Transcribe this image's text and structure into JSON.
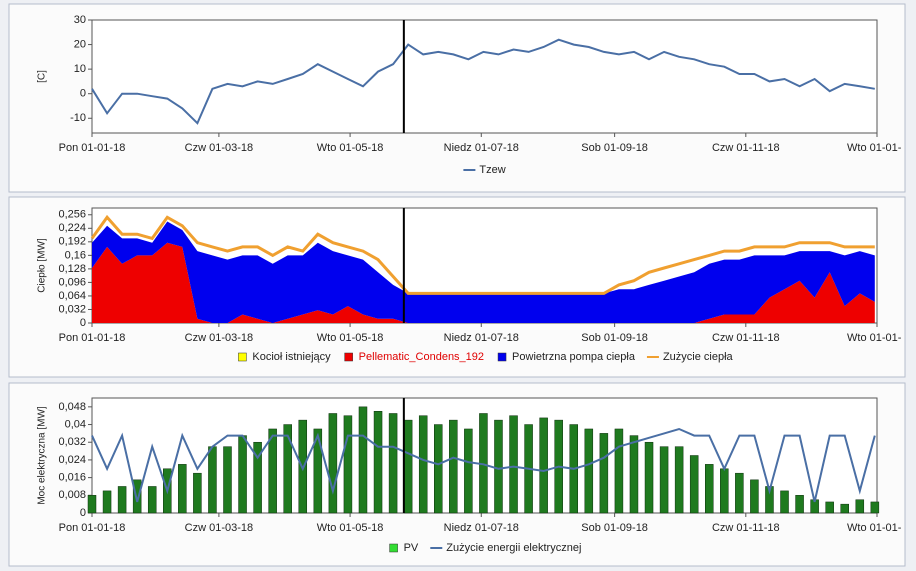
{
  "chart_data": [
    {
      "type": "line",
      "ylabel": "[C]",
      "x": [
        "2018-01-01",
        "2018-01-08",
        "2018-01-15",
        "2018-01-22",
        "2018-01-29",
        "2018-02-05",
        "2018-02-12",
        "2018-02-19",
        "2018-02-26",
        "2018-03-05",
        "2018-03-12",
        "2018-03-19",
        "2018-03-26",
        "2018-04-02",
        "2018-04-09",
        "2018-04-16",
        "2018-04-23",
        "2018-04-30",
        "2018-05-07",
        "2018-05-14",
        "2018-05-21",
        "2018-05-28",
        "2018-06-04",
        "2018-06-11",
        "2018-06-18",
        "2018-06-25",
        "2018-07-02",
        "2018-07-09",
        "2018-07-16",
        "2018-07-23",
        "2018-07-30",
        "2018-08-06",
        "2018-08-13",
        "2018-08-20",
        "2018-08-27",
        "2018-09-03",
        "2018-09-10",
        "2018-09-17",
        "2018-09-24",
        "2018-10-01",
        "2018-10-08",
        "2018-10-15",
        "2018-10-22",
        "2018-10-29",
        "2018-11-05",
        "2018-11-12",
        "2018-11-19",
        "2018-11-26",
        "2018-12-03",
        "2018-12-10",
        "2018-12-17",
        "2018-12-24",
        "2018-12-31"
      ],
      "xlim": [
        "2018-01-01",
        "2019-01-01"
      ],
      "xticks": [
        {
          "value": "2018-01-01",
          "label": "Pon 01-01-18"
        },
        {
          "value": "2018-03-01",
          "label": "Czw 01-03-18"
        },
        {
          "value": "2018-05-01",
          "label": "Wto 01-05-18"
        },
        {
          "value": "2018-07-01",
          "label": "Niedz 01-07-18"
        },
        {
          "value": "2018-09-01",
          "label": "Sob 01-09-18"
        },
        {
          "value": "2018-11-01",
          "label": "Czw 01-11-18"
        },
        {
          "value": "2019-01-01",
          "label": "Wto 01-01-"
        }
      ],
      "ylim": [
        -16,
        30
      ],
      "yticks": [
        -10,
        0,
        10,
        20,
        30
      ],
      "cursor": "2018-05-26",
      "series": [
        {
          "name": "Tzew",
          "color": "#4a6fa5",
          "kind": "line",
          "values": [
            2,
            -8,
            0,
            0,
            -1,
            -2,
            -6,
            -12,
            2,
            4,
            3,
            5,
            4,
            6,
            8,
            12,
            9,
            6,
            3,
            9,
            12,
            20,
            16,
            17,
            16,
            14,
            17,
            16,
            18,
            17,
            19,
            22,
            20,
            19,
            17,
            16,
            17,
            14,
            17,
            15,
            14,
            12,
            11,
            8,
            8,
            5,
            6,
            3,
            6,
            1,
            4,
            3,
            2
          ]
        }
      ]
    },
    {
      "type": "area",
      "ylabel": "Ciepło [MW]",
      "x": [
        "2018-01-01",
        "2018-01-08",
        "2018-01-15",
        "2018-01-22",
        "2018-01-29",
        "2018-02-05",
        "2018-02-12",
        "2018-02-19",
        "2018-02-26",
        "2018-03-05",
        "2018-03-12",
        "2018-03-19",
        "2018-03-26",
        "2018-04-02",
        "2018-04-09",
        "2018-04-16",
        "2018-04-23",
        "2018-04-30",
        "2018-05-07",
        "2018-05-14",
        "2018-05-21",
        "2018-05-28",
        "2018-06-04",
        "2018-06-11",
        "2018-06-18",
        "2018-06-25",
        "2018-07-02",
        "2018-07-09",
        "2018-07-16",
        "2018-07-23",
        "2018-07-30",
        "2018-08-06",
        "2018-08-13",
        "2018-08-20",
        "2018-08-27",
        "2018-09-03",
        "2018-09-10",
        "2018-09-17",
        "2018-09-24",
        "2018-10-01",
        "2018-10-08",
        "2018-10-15",
        "2018-10-22",
        "2018-10-29",
        "2018-11-05",
        "2018-11-12",
        "2018-11-19",
        "2018-11-26",
        "2018-12-03",
        "2018-12-10",
        "2018-12-17",
        "2018-12-24",
        "2018-12-31"
      ],
      "xlim": [
        "2018-01-01",
        "2019-01-01"
      ],
      "xticks": [
        {
          "value": "2018-01-01",
          "label": "Pon 01-01-18"
        },
        {
          "value": "2018-03-01",
          "label": "Czw 01-03-18"
        },
        {
          "value": "2018-05-01",
          "label": "Wto 01-05-18"
        },
        {
          "value": "2018-07-01",
          "label": "Niedz 01-07-18"
        },
        {
          "value": "2018-09-01",
          "label": "Sob 01-09-18"
        },
        {
          "value": "2018-11-01",
          "label": "Czw 01-11-18"
        },
        {
          "value": "2019-01-01",
          "label": "Wto 01-01-"
        }
      ],
      "ylim": [
        0,
        0.272
      ],
      "yticks": [
        0,
        {
          "value": 0.032,
          "label": "0,032"
        },
        {
          "value": 0.064,
          "label": "0,064"
        },
        {
          "value": 0.096,
          "label": "0,096"
        },
        {
          "value": 0.128,
          "label": "0,128"
        },
        {
          "value": 0.16,
          "label": "0,16"
        },
        {
          "value": 0.192,
          "label": "0,192"
        },
        {
          "value": 0.224,
          "label": "0,224"
        },
        {
          "value": 0.256,
          "label": "0,256"
        }
      ],
      "cursor": "2018-05-26",
      "series": [
        {
          "name": "Kocioł istniejący",
          "color": "#ffff00",
          "kind": "area",
          "values": [
            0,
            0,
            0,
            0,
            0,
            0,
            0,
            0,
            0,
            0,
            0,
            0,
            0,
            0,
            0,
            0,
            0,
            0,
            0,
            0,
            0,
            0,
            0,
            0,
            0,
            0,
            0,
            0,
            0,
            0,
            0,
            0,
            0,
            0,
            0,
            0,
            0,
            0,
            0,
            0,
            0,
            0,
            0,
            0,
            0,
            0,
            0,
            0,
            0,
            0,
            0,
            0,
            0
          ]
        },
        {
          "name": "Pellematic_Condens_192",
          "color": "#ee0000",
          "label_color": "#e00000",
          "kind": "area",
          "values": [
            0.13,
            0.18,
            0.14,
            0.16,
            0.16,
            0.19,
            0.18,
            0.01,
            0,
            0,
            0.02,
            0.01,
            0,
            0.01,
            0.02,
            0.03,
            0.02,
            0.04,
            0.02,
            0.01,
            0.01,
            0,
            0,
            0,
            0,
            0,
            0,
            0,
            0,
            0,
            0,
            0,
            0,
            0,
            0,
            0,
            0,
            0,
            0,
            0,
            0,
            0.01,
            0.02,
            0.02,
            0.02,
            0.06,
            0.08,
            0.1,
            0.06,
            0.12,
            0.04,
            0.07,
            0.05
          ]
        },
        {
          "name": "Powietrzna pompa ciepła",
          "color": "#0000ee",
          "kind": "area",
          "values": [
            0.06,
            0.05,
            0.06,
            0.04,
            0.03,
            0.05,
            0.04,
            0.16,
            0.16,
            0.15,
            0.14,
            0.15,
            0.14,
            0.15,
            0.14,
            0.16,
            0.15,
            0.12,
            0.13,
            0.11,
            0.08,
            0.07,
            0.07,
            0.07,
            0.07,
            0.07,
            0.07,
            0.07,
            0.07,
            0.07,
            0.07,
            0.07,
            0.07,
            0.07,
            0.07,
            0.08,
            0.08,
            0.09,
            0.1,
            0.11,
            0.12,
            0.13,
            0.13,
            0.13,
            0.14,
            0.1,
            0.08,
            0.07,
            0.11,
            0.05,
            0.12,
            0.1,
            0.11
          ]
        },
        {
          "name": "Zużycie ciepła",
          "color": "#f0a030",
          "kind": "line",
          "values": [
            0.2,
            0.25,
            0.21,
            0.21,
            0.2,
            0.25,
            0.23,
            0.19,
            0.18,
            0.17,
            0.18,
            0.18,
            0.16,
            0.18,
            0.17,
            0.21,
            0.19,
            0.18,
            0.17,
            0.15,
            0.11,
            0.07,
            0.07,
            0.07,
            0.07,
            0.07,
            0.07,
            0.07,
            0.07,
            0.07,
            0.07,
            0.07,
            0.07,
            0.07,
            0.07,
            0.09,
            0.1,
            0.12,
            0.13,
            0.14,
            0.15,
            0.16,
            0.17,
            0.17,
            0.18,
            0.18,
            0.18,
            0.19,
            0.19,
            0.19,
            0.18,
            0.18,
            0.18
          ]
        }
      ]
    },
    {
      "type": "bar",
      "ylabel": "Moc elektryczna [MW]",
      "x": [
        "2018-01-01",
        "2018-01-08",
        "2018-01-15",
        "2018-01-22",
        "2018-01-29",
        "2018-02-05",
        "2018-02-12",
        "2018-02-19",
        "2018-02-26",
        "2018-03-05",
        "2018-03-12",
        "2018-03-19",
        "2018-03-26",
        "2018-04-02",
        "2018-04-09",
        "2018-04-16",
        "2018-04-23",
        "2018-04-30",
        "2018-05-07",
        "2018-05-14",
        "2018-05-21",
        "2018-05-28",
        "2018-06-04",
        "2018-06-11",
        "2018-06-18",
        "2018-06-25",
        "2018-07-02",
        "2018-07-09",
        "2018-07-16",
        "2018-07-23",
        "2018-07-30",
        "2018-08-06",
        "2018-08-13",
        "2018-08-20",
        "2018-08-27",
        "2018-09-03",
        "2018-09-10",
        "2018-09-17",
        "2018-09-24",
        "2018-10-01",
        "2018-10-08",
        "2018-10-15",
        "2018-10-22",
        "2018-10-29",
        "2018-11-05",
        "2018-11-12",
        "2018-11-19",
        "2018-11-26",
        "2018-12-03",
        "2018-12-10",
        "2018-12-17",
        "2018-12-24",
        "2018-12-31"
      ],
      "xlim": [
        "2018-01-01",
        "2019-01-01"
      ],
      "xticks": [
        {
          "value": "2018-01-01",
          "label": "Pon 01-01-18"
        },
        {
          "value": "2018-03-01",
          "label": "Czw 01-03-18"
        },
        {
          "value": "2018-05-01",
          "label": "Wto 01-05-18"
        },
        {
          "value": "2018-07-01",
          "label": "Niedz 01-07-18"
        },
        {
          "value": "2018-09-01",
          "label": "Sob 01-09-18"
        },
        {
          "value": "2018-11-01",
          "label": "Czw 01-11-18"
        },
        {
          "value": "2019-01-01",
          "label": "Wto 01-01-"
        }
      ],
      "ylim": [
        0,
        0.052
      ],
      "yticks": [
        0,
        {
          "value": 0.008,
          "label": "0,008"
        },
        {
          "value": 0.016,
          "label": "0,016"
        },
        {
          "value": 0.024,
          "label": "0,024"
        },
        {
          "value": 0.032,
          "label": "0,032"
        },
        {
          "value": 0.04,
          "label": "0,04"
        },
        {
          "value": 0.048,
          "label": "0,048"
        }
      ],
      "cursor": "2018-05-26",
      "series": [
        {
          "name": "PV",
          "color": "#1f7a1f",
          "legend_color": "#33dd33",
          "kind": "bar",
          "values": [
            0.008,
            0.01,
            0.012,
            0.015,
            0.012,
            0.02,
            0.022,
            0.018,
            0.03,
            0.03,
            0.035,
            0.032,
            0.038,
            0.04,
            0.042,
            0.038,
            0.045,
            0.044,
            0.048,
            0.046,
            0.045,
            0.042,
            0.044,
            0.04,
            0.042,
            0.038,
            0.045,
            0.042,
            0.044,
            0.04,
            0.043,
            0.042,
            0.04,
            0.038,
            0.036,
            0.038,
            0.035,
            0.032,
            0.03,
            0.03,
            0.026,
            0.022,
            0.02,
            0.018,
            0.015,
            0.012,
            0.01,
            0.008,
            0.006,
            0.005,
            0.004,
            0.006,
            0.005
          ]
        },
        {
          "name": "Zużycie energii elektrycznej",
          "color": "#4a6fa5",
          "kind": "line",
          "values": [
            0.035,
            0.02,
            0.035,
            0.005,
            0.03,
            0.01,
            0.035,
            0.02,
            0.03,
            0.035,
            0.035,
            0.025,
            0.035,
            0.035,
            0.02,
            0.035,
            0.01,
            0.035,
            0.035,
            0.03,
            0.03,
            0.027,
            0.024,
            0.022,
            0.025,
            0.023,
            0.022,
            0.02,
            0.021,
            0.02,
            0.019,
            0.021,
            0.02,
            0.022,
            0.025,
            0.03,
            0.032,
            0.034,
            0.036,
            0.038,
            0.035,
            0.035,
            0.02,
            0.035,
            0.035,
            0.01,
            0.035,
            0.035,
            0.005,
            0.035,
            0.035,
            0.01,
            0.035
          ]
        }
      ]
    }
  ]
}
